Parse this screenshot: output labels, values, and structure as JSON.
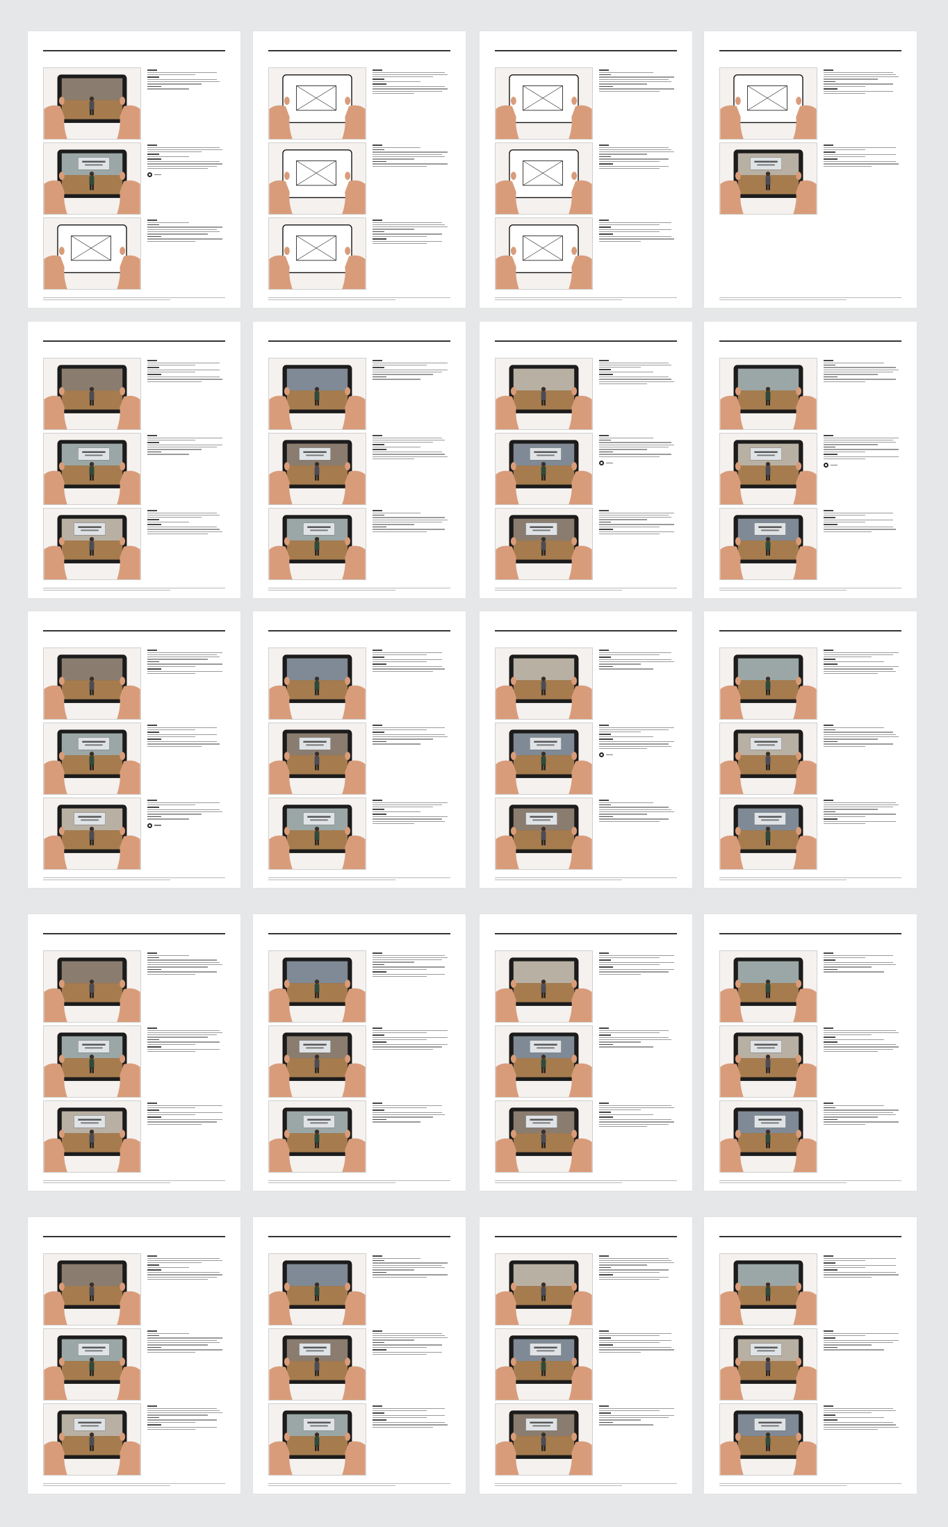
{
  "brand": "",
  "pages": [
    {
      "number": "",
      "section": "",
      "scenes": [
        {
          "label": "",
          "icon": false
        },
        {
          "label": "",
          "icon": true
        },
        {
          "label": "",
          "icon": false
        }
      ]
    },
    {
      "number": "",
      "section": "",
      "scenes": [
        {
          "label": "",
          "icon": false
        },
        {
          "label": "",
          "icon": false
        },
        {
          "label": "",
          "icon": false
        }
      ]
    },
    {
      "number": "",
      "section": "",
      "scenes": [
        {
          "label": "",
          "icon": false
        },
        {
          "label": "",
          "icon": false
        },
        {
          "label": "",
          "icon": false
        }
      ]
    },
    {
      "number": "",
      "section": "",
      "scenes": [
        {
          "label": "",
          "icon": false
        },
        {
          "label": "",
          "icon": false
        }
      ]
    },
    {
      "number": "",
      "section": "",
      "scenes": [
        {
          "label": "",
          "icon": false
        },
        {
          "label": "",
          "icon": false
        },
        {
          "label": "",
          "icon": false
        }
      ]
    },
    {
      "number": "",
      "section": "",
      "scenes": [
        {
          "label": "",
          "icon": false
        },
        {
          "label": "",
          "icon": false
        },
        {
          "label": "",
          "icon": false
        }
      ]
    },
    {
      "number": "",
      "section": "",
      "scenes": [
        {
          "label": "",
          "icon": false
        },
        {
          "label": "",
          "icon": true
        },
        {
          "label": "",
          "icon": false
        }
      ]
    },
    {
      "number": "",
      "section": "",
      "scenes": [
        {
          "label": "",
          "icon": false
        },
        {
          "label": "",
          "icon": true
        },
        {
          "label": "",
          "icon": false
        }
      ]
    },
    {
      "number": "",
      "section": "",
      "scenes": [
        {
          "label": "",
          "icon": false
        },
        {
          "label": "",
          "icon": false
        },
        {
          "label": "",
          "icon": true
        }
      ]
    },
    {
      "number": "",
      "section": "",
      "scenes": [
        {
          "label": "",
          "icon": false
        },
        {
          "label": "",
          "icon": false
        },
        {
          "label": "",
          "icon": false
        }
      ]
    },
    {
      "number": "",
      "section": "",
      "scenes": [
        {
          "label": "",
          "icon": false
        },
        {
          "label": "",
          "icon": true
        },
        {
          "label": "",
          "icon": false
        }
      ]
    },
    {
      "number": "",
      "section": "",
      "scenes": [
        {
          "label": "",
          "icon": false
        },
        {
          "label": "",
          "icon": false
        },
        {
          "label": "",
          "icon": false
        }
      ]
    },
    {
      "number": "",
      "section": "",
      "scenes": [
        {
          "label": "",
          "icon": false
        },
        {
          "label": "",
          "icon": false
        },
        {
          "label": "",
          "icon": false
        }
      ]
    },
    {
      "number": "",
      "section": "",
      "scenes": [
        {
          "label": "",
          "icon": false
        },
        {
          "label": "",
          "icon": false
        },
        {
          "label": "",
          "icon": false
        }
      ]
    },
    {
      "number": "",
      "section": "",
      "scenes": [
        {
          "label": "",
          "icon": false
        },
        {
          "label": "",
          "icon": false
        },
        {
          "label": "",
          "icon": false
        }
      ]
    },
    {
      "number": "",
      "section": "",
      "scenes": [
        {
          "label": "",
          "icon": false
        },
        {
          "label": "",
          "icon": false
        },
        {
          "label": "",
          "icon": false
        }
      ]
    },
    {
      "number": "",
      "section": "",
      "scenes": [
        {
          "label": "",
          "icon": false
        },
        {
          "label": "",
          "icon": false
        },
        {
          "label": "",
          "icon": false
        }
      ]
    },
    {
      "number": "",
      "section": "",
      "scenes": [
        {
          "label": "",
          "icon": false
        },
        {
          "label": "",
          "icon": false
        },
        {
          "label": "",
          "icon": false
        }
      ]
    },
    {
      "number": "",
      "section": "",
      "scenes": [
        {
          "label": "",
          "icon": false
        },
        {
          "label": "",
          "icon": false
        },
        {
          "label": "",
          "icon": false
        }
      ]
    },
    {
      "number": "",
      "section": "",
      "scenes": [
        {
          "label": "",
          "icon": false
        },
        {
          "label": "",
          "icon": false
        },
        {
          "label": "",
          "icon": false
        }
      ]
    }
  ],
  "colors": {
    "background": "#e6e7e8",
    "page": "#ffffff",
    "accent": "#c8912a",
    "rule": "#333333",
    "tablet": "#1c1c1c",
    "hand": "#d99c7a",
    "floor": "#a67c4e"
  }
}
